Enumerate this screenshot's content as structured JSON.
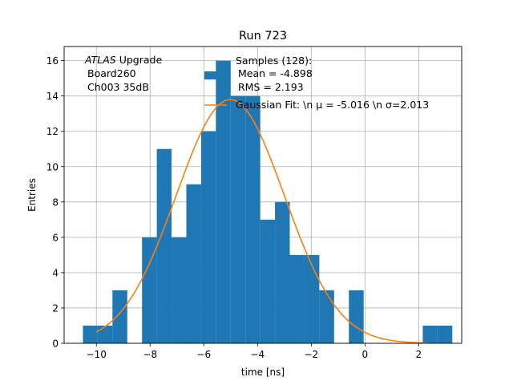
{
  "chart_data": {
    "type": "bar",
    "title": "Run 723",
    "xlabel": "time [ns]",
    "ylabel": "Entries",
    "xlim": [
      -11.2,
      3.6
    ],
    "ylim": [
      0,
      16.8
    ],
    "grid": true,
    "xticks": [
      -10,
      -8,
      -6,
      -4,
      -2,
      0,
      2
    ],
    "xtick_labels": [
      "−10",
      "−8",
      "−6",
      "−4",
      "−2",
      "0",
      "2"
    ],
    "yticks": [
      0,
      2,
      4,
      6,
      8,
      10,
      12,
      14,
      16
    ],
    "ytick_labels": [
      "0",
      "2",
      "4",
      "6",
      "8",
      "10",
      "12",
      "14",
      "16"
    ],
    "histogram": {
      "name": "Samples (128):",
      "color": "#1f77b4",
      "bin_width": 0.55,
      "bin_starts": [
        -10.5,
        -9.95,
        -9.4,
        -8.85,
        -8.3,
        -7.75,
        -7.2,
        -6.65,
        -6.1,
        -5.55,
        -5.0,
        -4.45,
        -3.9,
        -3.35,
        -2.8,
        -2.25,
        -1.7,
        -1.15,
        -0.6,
        -0.05,
        0.5,
        1.05,
        1.6,
        2.15,
        2.7
      ],
      "counts": [
        1,
        1,
        3,
        0,
        6,
        11,
        6,
        9,
        12,
        16,
        14,
        14,
        7,
        8,
        5,
        5,
        3,
        0,
        3,
        0,
        0,
        0,
        0,
        1,
        1
      ]
    },
    "fit": {
      "name": "Gaussian Fit",
      "color": "#ff7f0e",
      "mu": -5.016,
      "sigma": 2.013,
      "amplitude": 13.8,
      "x_range": [
        -10.0,
        2.4
      ]
    },
    "annotation": {
      "line1_italic": "ATLAS",
      "line1_rest": " Upgrade",
      "line2": "Board260",
      "line3": "Ch003 35dB"
    },
    "legend": {
      "position": "upper-center",
      "samples_line1": "Samples (128):",
      "samples_line2": "Mean = -4.898",
      "samples_line3": "RMS = 2.193",
      "fit_label": "Gaussian Fit: \\n μ = -5.016 \\n σ=2.013"
    }
  }
}
